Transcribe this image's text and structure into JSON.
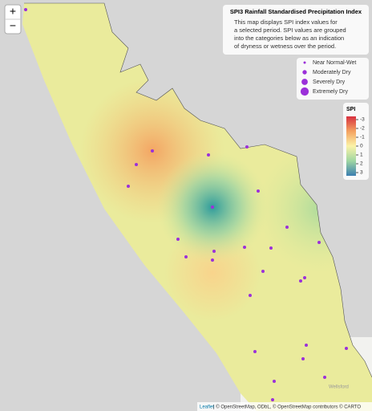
{
  "zoom": {
    "in": "+",
    "out": "−"
  },
  "info": {
    "title": "SPI3 Rainfall Standardised Precipitation Index",
    "body": [
      "This map displays SPI index values for",
      "a selected period. SPI values are grouped",
      "into the categories below as an indication",
      "of dryness or wetness over the period."
    ]
  },
  "legend": {
    "items": [
      "Near Normal-Wet",
      "Moderately Dry",
      "Severely Dry",
      "Extremely Dry"
    ]
  },
  "colorbar": {
    "title": "SPI",
    "ticks": [
      -3,
      -2,
      -1,
      0,
      1,
      2,
      3
    ],
    "lim": [
      -3,
      3
    ]
  },
  "place_labels": [
    "Wellsford"
  ],
  "attribution": {
    "leaflet": "Leaflet",
    "rest": "| © OpenStreetMap, ODbL, © OpenStreetMap contributors © CARTO"
  }
}
